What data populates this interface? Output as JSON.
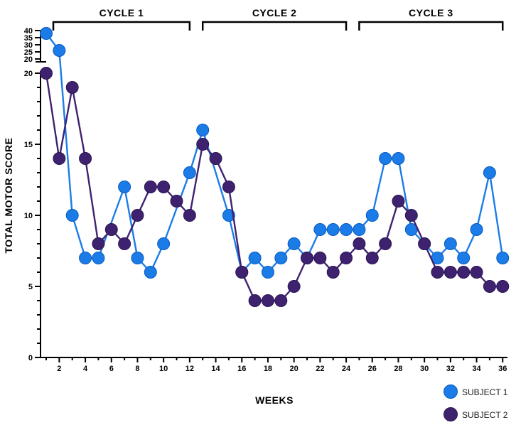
{
  "chart_data": {
    "type": "line",
    "title": "",
    "xlabel": "WEEKS",
    "ylabel": "TOTAL MOTOR SCORE",
    "weeks_range": [
      1,
      36
    ],
    "x_tick_labels": [
      2,
      4,
      6,
      8,
      10,
      12,
      14,
      16,
      18,
      20,
      22,
      24,
      26,
      28,
      30,
      32,
      34,
      36
    ],
    "y_axis": {
      "main_ticks": [
        0,
        5,
        10,
        15,
        20
      ],
      "upper_ticks": [
        20,
        25,
        30,
        35,
        40
      ],
      "axis_break": true,
      "minor_tick_step": 1
    },
    "series": [
      {
        "name": "SUBJECT 1",
        "color": "#1b7ce8",
        "edge_color": "#0a5bbf",
        "values": [
          38,
          26,
          10,
          7,
          7,
          null,
          12,
          7,
          6,
          8,
          null,
          13,
          16,
          null,
          10,
          6,
          7,
          6,
          7,
          8,
          7,
          9,
          9,
          9,
          9,
          10,
          14,
          14,
          9,
          8,
          7,
          8,
          7,
          9,
          13,
          7
        ]
      },
      {
        "name": "SUBJECT 2",
        "color": "#3e2270",
        "edge_color": "#2a1650",
        "values": [
          20,
          14,
          19,
          14,
          8,
          9,
          8,
          10,
          12,
          12,
          11,
          10,
          15,
          14,
          12,
          6,
          4,
          4,
          4,
          5,
          7,
          7,
          6,
          7,
          8,
          7,
          8,
          11,
          10,
          8,
          6,
          6,
          6,
          6,
          5,
          5
        ]
      }
    ],
    "annotations": [
      {
        "label": "CYCLE 1",
        "week_start": 1,
        "week_end": 12
      },
      {
        "label": "CYCLE 2",
        "week_start": 13,
        "week_end": 24
      },
      {
        "label": "CYCLE 3",
        "week_start": 25,
        "week_end": 36
      }
    ],
    "legend_position": "bottom-right",
    "grid": false
  },
  "legend": {
    "items": [
      {
        "label": "SUBJECT 1",
        "color": "#1b7ce8"
      },
      {
        "label": "SUBJECT 2",
        "color": "#3e2270"
      }
    ]
  },
  "colors": {
    "axis": "#000000",
    "background": "#ffffff"
  }
}
